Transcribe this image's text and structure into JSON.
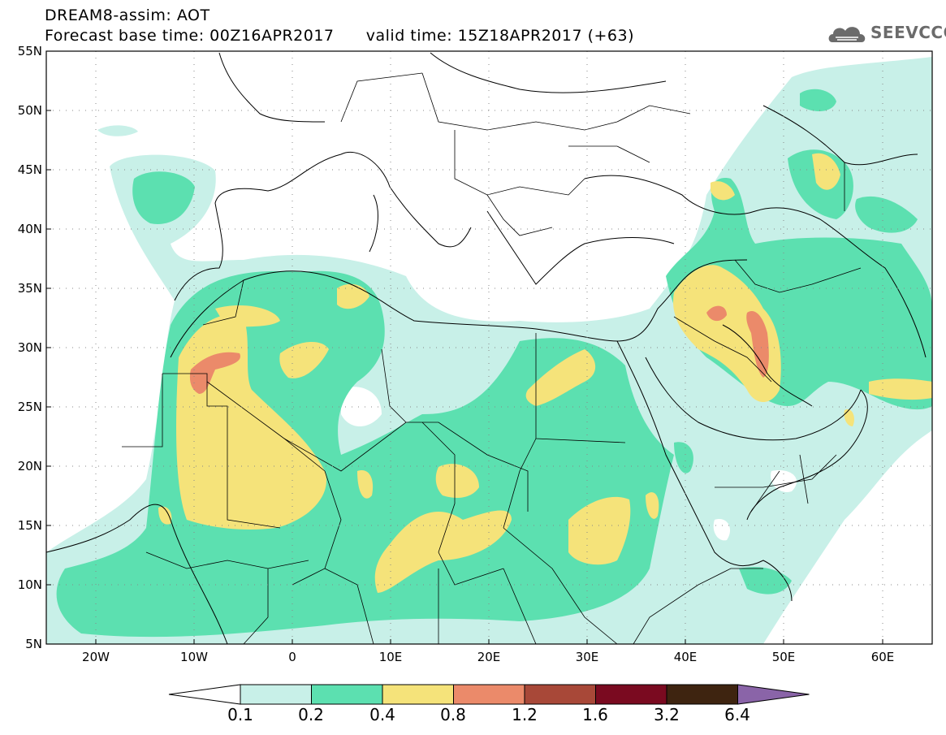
{
  "title_line1": "DREAM8-assim: AOT",
  "title_line2": "Forecast base time: 00Z16APR2017      valid time: 15Z18APR2017 (+63)",
  "logo_text": "SEEVCCC",
  "lat_labels": [
    "55N",
    "50N",
    "45N",
    "40N",
    "35N",
    "30N",
    "25N",
    "20N",
    "15N",
    "10N",
    "5N"
  ],
  "lon_labels": [
    "20W",
    "10W",
    "0",
    "10E",
    "20E",
    "30E",
    "40E",
    "50E",
    "60E"
  ],
  "colorbar": {
    "levels": [
      "0.1",
      "0.2",
      "0.4",
      "0.8",
      "1.2",
      "1.6",
      "3.2",
      "6.4"
    ],
    "colors": [
      "#ffffff",
      "#c8f0e8",
      "#5ce0b0",
      "#f5e37a",
      "#eb8a6a",
      "#a84838",
      "#7a0a20",
      "#3e2410",
      "#8a64a8"
    ]
  },
  "colors": {
    "low": "#c8f0e8",
    "mid": "#5ce0b0",
    "high": "#f5e37a",
    "veryhigh": "#eb8a6a"
  }
}
